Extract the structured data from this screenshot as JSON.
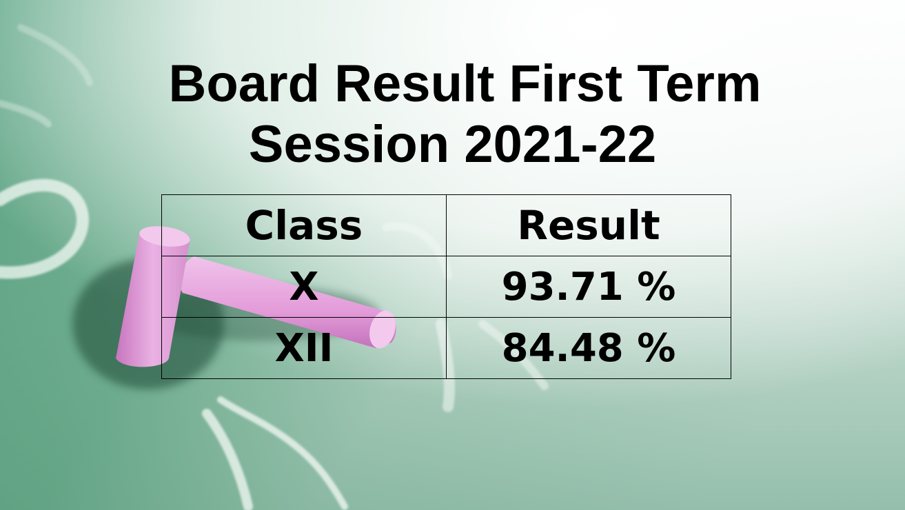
{
  "slide": {
    "title_line1": "Board Result First Term",
    "title_line2": "Session 2021-22"
  },
  "table": {
    "headers": [
      "Class",
      "Result"
    ],
    "rows": [
      [
        "X",
        "93.71 %"
      ],
      [
        "XII",
        "84.48 %"
      ]
    ]
  },
  "colors": {
    "chalkboard_green": "#4f9a78",
    "chalk_pink": "#e6a6e0",
    "text": "#000000"
  }
}
